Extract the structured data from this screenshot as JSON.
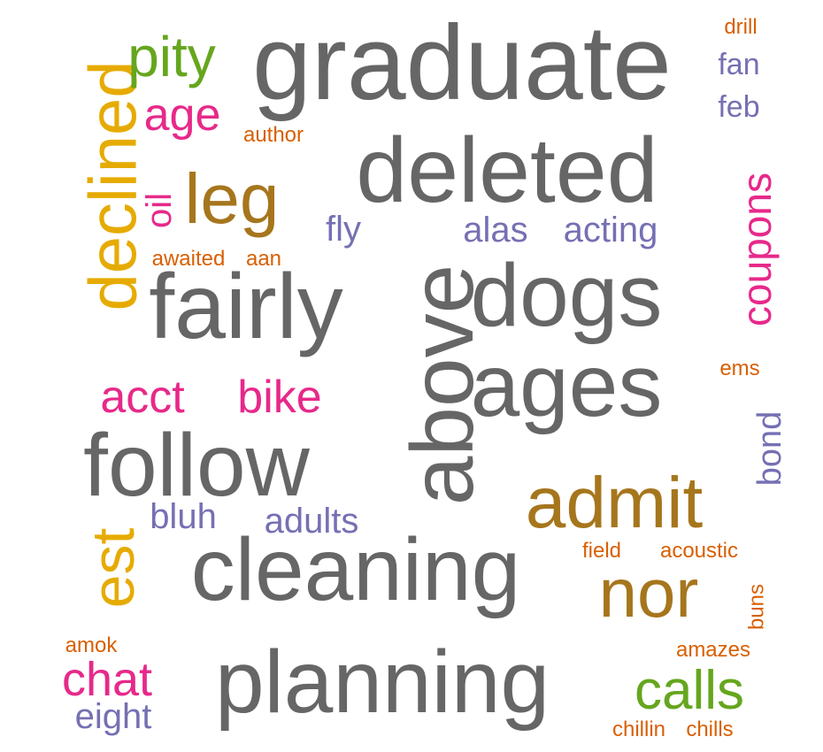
{
  "palette": {
    "gray": "#666666",
    "orange": "#e6ab02",
    "green": "#66a61e",
    "magenta": "#e7298a",
    "brown": "#a6761d",
    "burnt": "#d95f02",
    "purple": "#7570b3"
  },
  "words": [
    {
      "text": "graduate",
      "color": "gray",
      "rotated": false
    },
    {
      "text": "deleted",
      "color": "gray",
      "rotated": false
    },
    {
      "text": "fairly",
      "color": "gray",
      "rotated": false
    },
    {
      "text": "dogs",
      "color": "gray",
      "rotated": false
    },
    {
      "text": "ages",
      "color": "gray",
      "rotated": false
    },
    {
      "text": "follow",
      "color": "gray",
      "rotated": false
    },
    {
      "text": "cleaning",
      "color": "gray",
      "rotated": false
    },
    {
      "text": "planning",
      "color": "gray",
      "rotated": false
    },
    {
      "text": "above",
      "color": "gray",
      "rotated": true
    },
    {
      "text": "declined",
      "color": "orange",
      "rotated": true
    },
    {
      "text": "est",
      "color": "orange",
      "rotated": true
    },
    {
      "text": "pity",
      "color": "green",
      "rotated": false
    },
    {
      "text": "calls",
      "color": "green",
      "rotated": false
    },
    {
      "text": "age",
      "color": "magenta",
      "rotated": false
    },
    {
      "text": "oil",
      "color": "magenta",
      "rotated": true
    },
    {
      "text": "acct",
      "color": "magenta",
      "rotated": false
    },
    {
      "text": "bike",
      "color": "magenta",
      "rotated": false
    },
    {
      "text": "chat",
      "color": "magenta",
      "rotated": false
    },
    {
      "text": "coupons",
      "color": "magenta",
      "rotated": true
    },
    {
      "text": "leg",
      "color": "brown",
      "rotated": false
    },
    {
      "text": "admit",
      "color": "brown",
      "rotated": false
    },
    {
      "text": "nor",
      "color": "brown",
      "rotated": false
    },
    {
      "text": "author",
      "color": "burnt",
      "rotated": false
    },
    {
      "text": "awaited",
      "color": "burnt",
      "rotated": false
    },
    {
      "text": "aan",
      "color": "burnt",
      "rotated": false
    },
    {
      "text": "drill",
      "color": "burnt",
      "rotated": false
    },
    {
      "text": "ems",
      "color": "burnt",
      "rotated": false
    },
    {
      "text": "field",
      "color": "burnt",
      "rotated": false
    },
    {
      "text": "acoustic",
      "color": "burnt",
      "rotated": false
    },
    {
      "text": "amok",
      "color": "burnt",
      "rotated": false
    },
    {
      "text": "amazes",
      "color": "burnt",
      "rotated": false
    },
    {
      "text": "chillin",
      "color": "burnt",
      "rotated": false
    },
    {
      "text": "chills",
      "color": "burnt",
      "rotated": false
    },
    {
      "text": "buns",
      "color": "burnt",
      "rotated": true
    },
    {
      "text": "fan",
      "color": "purple",
      "rotated": false
    },
    {
      "text": "feb",
      "color": "purple",
      "rotated": false
    },
    {
      "text": "fly",
      "color": "purple",
      "rotated": false
    },
    {
      "text": "alas",
      "color": "purple",
      "rotated": false
    },
    {
      "text": "acting",
      "color": "purple",
      "rotated": false
    },
    {
      "text": "bluh",
      "color": "purple",
      "rotated": false
    },
    {
      "text": "adults",
      "color": "purple",
      "rotated": false
    },
    {
      "text": "eight",
      "color": "purple",
      "rotated": false
    },
    {
      "text": "bond",
      "color": "purple",
      "rotated": true
    }
  ]
}
